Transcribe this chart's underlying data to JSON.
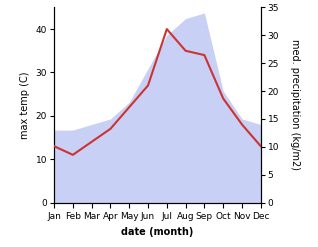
{
  "months": [
    "Jan",
    "Feb",
    "Mar",
    "Apr",
    "May",
    "Jun",
    "Jul",
    "Aug",
    "Sep",
    "Oct",
    "Nov",
    "Dec"
  ],
  "max_temp": [
    13,
    11,
    14,
    17,
    22,
    27,
    40,
    35,
    34,
    24,
    18,
    13
  ],
  "precipitation": [
    13,
    13,
    14,
    15,
    18,
    24,
    30,
    33,
    34,
    20,
    15,
    14
  ],
  "temp_color": "#cc3333",
  "precip_fill_color": "#c8d0f5",
  "precip_alpha": 1.0,
  "temp_ylim": [
    0,
    45
  ],
  "precip_ylim": [
    0,
    35
  ],
  "temp_yticks": [
    0,
    10,
    20,
    30,
    40
  ],
  "precip_yticks": [
    0,
    5,
    10,
    15,
    20,
    25,
    30,
    35
  ],
  "xlabel": "date (month)",
  "ylabel_left": "max temp (C)",
  "ylabel_right": "med. precipitation (kg/m2)",
  "label_fontsize": 7,
  "tick_fontsize": 6.5
}
